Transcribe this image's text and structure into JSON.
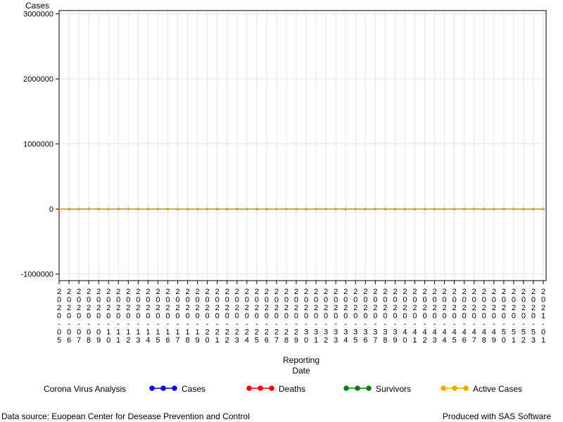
{
  "chart_data": {
    "type": "line",
    "ylabel": "Cases",
    "xlabel_line1": "Reporting",
    "xlabel_line2": "Date",
    "ylim": [
      -1100000,
      3050000
    ],
    "yticks": [
      -1000000,
      0,
      1000000,
      2000000,
      3000000
    ],
    "ytick_labels": [
      "-1000000",
      "0",
      "1000000",
      "2000000",
      "3000000"
    ],
    "grid": true,
    "legend_position": "bottom",
    "categories": [
      "2020-05",
      "2020-06",
      "2020-07",
      "2020-08",
      "2020-09",
      "2020-10",
      "2020-11",
      "2020-12",
      "2020-13",
      "2020-14",
      "2020-15",
      "2020-16",
      "2020-17",
      "2020-18",
      "2020-19",
      "2020-20",
      "2020-21",
      "2020-22",
      "2020-23",
      "2020-24",
      "2020-25",
      "2020-26",
      "2020-27",
      "2020-28",
      "2020-29",
      "2020-30",
      "2020-31",
      "2020-32",
      "2020-33",
      "2020-34",
      "2020-35",
      "2020-36",
      "2020-37",
      "2020-38",
      "2020-39",
      "2020-40",
      "2020-41",
      "2020-42",
      "2020-43",
      "2020-44",
      "2020-45",
      "2020-46",
      "2020-47",
      "2020-48",
      "2020-49",
      "2020-50",
      "2020-51",
      "2020-52",
      "2020-53",
      "2021-01"
    ],
    "series": [
      {
        "name": "Cases",
        "color": "#0000ff",
        "values": [
          0,
          0,
          0,
          0,
          0,
          0,
          0,
          0,
          0,
          0,
          0,
          0,
          0,
          0,
          0,
          0,
          0,
          0,
          0,
          0,
          0,
          0,
          0,
          0,
          0,
          0,
          0,
          0,
          0,
          0,
          0,
          0,
          0,
          0,
          0,
          0,
          0,
          0,
          0,
          0,
          0,
          0,
          0,
          0,
          0,
          0,
          0,
          0,
          0,
          0
        ]
      },
      {
        "name": "Deaths",
        "color": "#ff0000",
        "values": [
          0,
          0,
          0,
          0,
          0,
          0,
          0,
          0,
          0,
          0,
          0,
          0,
          0,
          0,
          0,
          0,
          0,
          0,
          0,
          0,
          0,
          0,
          0,
          0,
          0,
          0,
          0,
          0,
          0,
          0,
          0,
          0,
          0,
          0,
          0,
          0,
          0,
          0,
          0,
          0,
          0,
          0,
          0,
          0,
          0,
          0,
          0,
          0,
          0,
          0
        ]
      },
      {
        "name": "Survivors",
        "color": "#008000",
        "values": [
          0,
          0,
          0,
          0,
          0,
          0,
          0,
          0,
          0,
          0,
          0,
          0,
          0,
          0,
          0,
          0,
          0,
          0,
          0,
          0,
          0,
          0,
          0,
          0,
          0,
          0,
          0,
          0,
          0,
          0,
          0,
          0,
          0,
          0,
          0,
          0,
          0,
          0,
          0,
          0,
          0,
          0,
          0,
          0,
          0,
          0,
          0,
          0,
          0,
          0
        ]
      },
      {
        "name": "Active Cases",
        "color": "#ffa500",
        "values": [
          0,
          0,
          0,
          0,
          0,
          0,
          0,
          0,
          0,
          0,
          0,
          0,
          0,
          0,
          0,
          0,
          0,
          0,
          0,
          0,
          0,
          0,
          0,
          0,
          0,
          0,
          0,
          0,
          0,
          0,
          0,
          0,
          0,
          0,
          0,
          0,
          0,
          0,
          0,
          0,
          0,
          0,
          0,
          0,
          0,
          0,
          0,
          0,
          0,
          0
        ]
      }
    ]
  },
  "legend": {
    "title": "Corona Virus Analysis",
    "items": [
      "Cases",
      "Deaths",
      "Survivors",
      "Active Cases"
    ]
  },
  "footer": {
    "source": "Data source: Euopean Center for Desease Prevention and Control",
    "credit": "Produced with SAS Software"
  }
}
